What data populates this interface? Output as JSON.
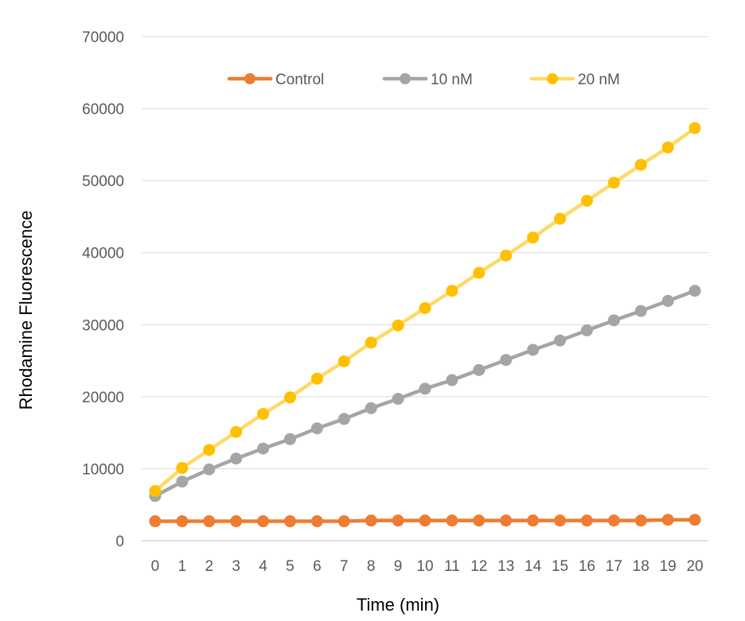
{
  "chart_data": {
    "type": "line",
    "title": "",
    "xlabel": "Time (min)",
    "ylabel": "Rhodamine Fluorescence",
    "ylim": [
      0,
      70000
    ],
    "yticks": [
      0,
      10000,
      20000,
      30000,
      40000,
      50000,
      60000,
      70000
    ],
    "categories": [
      "0",
      "1",
      "2",
      "3",
      "4",
      "5",
      "6",
      "7",
      "8",
      "9",
      "10",
      "11",
      "12",
      "13",
      "14",
      "15",
      "16",
      "17",
      "18",
      "19",
      "20"
    ],
    "grid": true,
    "legend_position": "top",
    "series": [
      {
        "name": "Control",
        "color": "#ED7D31",
        "values": [
          2700,
          2700,
          2700,
          2700,
          2700,
          2700,
          2700,
          2700,
          2800,
          2800,
          2800,
          2800,
          2800,
          2800,
          2800,
          2800,
          2800,
          2800,
          2800,
          2900,
          2900
        ]
      },
      {
        "name": "10 nM",
        "color": "#A5A5A5",
        "values": [
          6200,
          8200,
          9900,
          11400,
          12800,
          14100,
          15600,
          16900,
          18400,
          19700,
          21100,
          22300,
          23700,
          25100,
          26500,
          27800,
          29200,
          30600,
          31900,
          33300,
          34700
        ]
      },
      {
        "name": "20 nM",
        "color": "#FFC000",
        "line_color": "#FFD966",
        "values": [
          6900,
          10100,
          12600,
          15100,
          17600,
          19900,
          22500,
          24900,
          27500,
          29900,
          32300,
          34700,
          37200,
          39600,
          42100,
          44700,
          47200,
          49700,
          52200,
          54600,
          57300
        ]
      }
    ]
  }
}
